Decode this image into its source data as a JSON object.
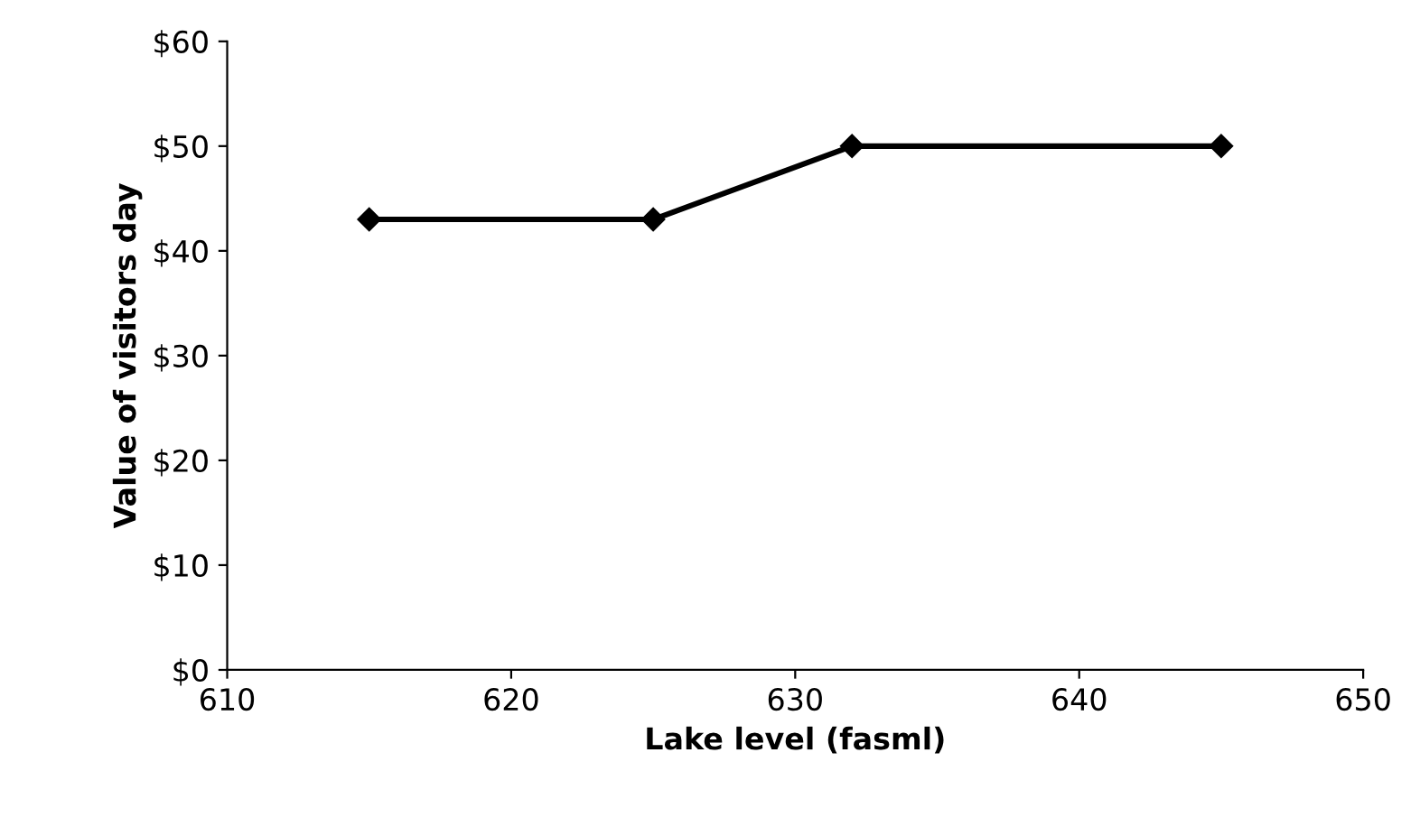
{
  "chart_data": {
    "type": "line",
    "xlabel": "Lake level (fasml)",
    "ylabel": "Value of visitors day",
    "x": [
      615,
      625,
      632,
      645
    ],
    "series": [
      {
        "color": "#000000",
        "values": [
          43,
          43,
          50,
          50
        ]
      }
    ],
    "xlim": [
      610,
      650
    ],
    "xticks": [
      610,
      620,
      630,
      640,
      650
    ],
    "ylim": [
      0,
      60
    ],
    "yticks": [
      {
        "value": 0,
        "label": "$0"
      },
      {
        "value": 10,
        "label": "$10"
      },
      {
        "value": 20,
        "label": "$20"
      },
      {
        "value": 30,
        "label": "$30"
      },
      {
        "value": 40,
        "label": "$40"
      },
      {
        "value": 50,
        "label": "$50"
      },
      {
        "value": 60,
        "label": "$60"
      }
    ],
    "marker": "diamond",
    "line_style": "solid",
    "grid": false,
    "legend": false
  }
}
